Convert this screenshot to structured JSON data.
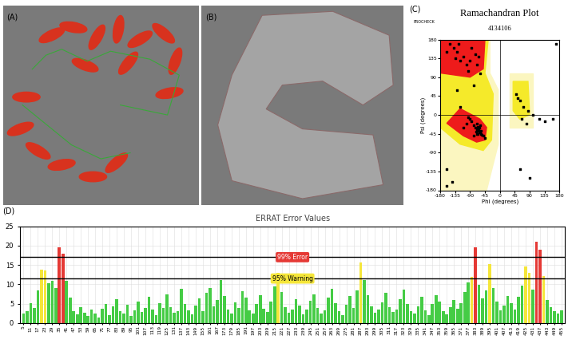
{
  "images": [
    {
      "panel": "(A)"
    },
    {
      "panel": "(B)"
    }
  ],
  "chart_data": [
    {
      "type": "scatter",
      "panel": "(C)",
      "title": "Ramachandran Plot",
      "subtitle": "4134106",
      "source": "PROCHECK",
      "x_label": "Phi (degrees)",
      "y_label": "Psi (degrees)",
      "color": "#000000",
      "marker": "square",
      "x": [
        -63,
        -60,
        -65,
        -58,
        -70,
        -67,
        -62,
        -55,
        -72,
        -75,
        -80,
        -85,
        -90,
        -95,
        -68,
        -60,
        -50,
        -45,
        -100,
        -110,
        -78,
        -64,
        -70,
        -57,
        -66,
        -120,
        -130,
        -140,
        -100,
        -90,
        -150,
        -75,
        -65,
        -110,
        -160,
        -135,
        -85,
        -70,
        -125,
        -95,
        -60,
        -80,
        -160,
        -145,
        -120,
        -130,
        55,
        60,
        70,
        50,
        85,
        65,
        80,
        100,
        120,
        135,
        160,
        60,
        90,
        -160,
        170
      ],
      "y": [
        -42,
        -40,
        -38,
        -45,
        -35,
        -45,
        -30,
        -48,
        -40,
        -30,
        -25,
        -15,
        -10,
        -5,
        -20,
        -25,
        -50,
        -55,
        -20,
        -30,
        -50,
        -36,
        -45,
        -38,
        -28,
        130,
        150,
        160,
        120,
        130,
        170,
        145,
        140,
        140,
        150,
        135,
        160,
        120,
        170,
        105,
        100,
        70,
        -170,
        -160,
        20,
        60,
        40,
        35,
        20,
        50,
        10,
        -10,
        -20,
        0,
        -10,
        -15,
        -10,
        -130,
        -150,
        -130,
        170
      ],
      "xlim": [
        -180,
        180
      ],
      "ylim": [
        -180,
        180
      ],
      "xticks": [
        -180,
        -135,
        -90,
        -45,
        0,
        45,
        90,
        135,
        180
      ],
      "yticks": [
        -180,
        -135,
        -90,
        -45,
        0,
        45,
        90,
        135,
        180
      ]
    },
    {
      "type": "bar",
      "panel": "(D)",
      "title": "ERRAT Error Values",
      "color": "#45cc45",
      "grid": true,
      "x": [
        5,
        8,
        11,
        14,
        17,
        20,
        23,
        26,
        29,
        32,
        35,
        38,
        41,
        44,
        47,
        50,
        53,
        56,
        59,
        62,
        65,
        68,
        71,
        74,
        77,
        80,
        83,
        86,
        89,
        92,
        95,
        98,
        101,
        104,
        107,
        110,
        113,
        116,
        119,
        122,
        125,
        128,
        131,
        134,
        137,
        140,
        143,
        146,
        149,
        152,
        155,
        158,
        161,
        164,
        167,
        170,
        173,
        176,
        179,
        182,
        185,
        188,
        191,
        194,
        197,
        200,
        203,
        206,
        209,
        212,
        215,
        218,
        221,
        224,
        227,
        230,
        233,
        236,
        239,
        242,
        245,
        248,
        251,
        254,
        257,
        260,
        263,
        266,
        269,
        272,
        275,
        278,
        281,
        284,
        287,
        290,
        293,
        296,
        299,
        302,
        305,
        308,
        311,
        314,
        317,
        320,
        323,
        326,
        329,
        332,
        335,
        338,
        341,
        344,
        347,
        350,
        353,
        356,
        359,
        362,
        365,
        368,
        371,
        374,
        377,
        380,
        383,
        386,
        389,
        392,
        395,
        398,
        401,
        404,
        407,
        410,
        413,
        416,
        419,
        422,
        425,
        428,
        431,
        434,
        437,
        440,
        443,
        446,
        449,
        452,
        455
      ],
      "values": [
        2.5,
        3.1,
        5.2,
        4.0,
        8.5,
        13.8,
        13.5,
        10.2,
        11.0,
        9.0,
        19.5,
        17.8,
        11.0,
        6.5,
        3.0,
        2.2,
        4.1,
        2.6,
        1.8,
        3.5,
        2.4,
        1.5,
        3.8,
        5.0,
        2.1,
        4.3,
        6.2,
        3.0,
        2.5,
        4.8,
        1.9,
        3.3,
        5.5,
        2.8,
        4.0,
        6.8,
        3.5,
        2.0,
        5.1,
        3.9,
        7.5,
        4.2,
        2.6,
        3.1,
        8.9,
        5.0,
        3.3,
        2.2,
        4.6,
        6.4,
        3.1,
        7.8,
        9.0,
        4.4,
        6.0,
        11.2,
        7.0,
        3.6,
        2.5,
        5.3,
        4.0,
        8.2,
        6.5,
        3.2,
        2.4,
        4.9,
        7.2,
        3.8,
        2.9,
        5.6,
        9.5,
        13.0,
        8.0,
        4.1,
        2.7,
        3.4,
        6.1,
        4.5,
        2.2,
        3.6,
        5.8,
        7.4,
        4.0,
        2.5,
        3.2,
        6.6,
        8.8,
        5.2,
        3.0,
        2.1,
        4.7,
        6.9,
        3.9,
        8.5,
        15.6,
        11.2,
        7.1,
        4.3,
        2.6,
        3.5,
        5.4,
        7.9,
        4.2,
        2.8,
        3.6,
        6.2,
        8.6,
        5.0,
        3.1,
        2.4,
        4.4,
        6.7,
        3.3,
        2.0,
        4.9,
        7.3,
        5.6,
        3.0,
        2.3,
        4.1,
        6.0,
        3.7,
        5.2,
        8.0,
        10.5,
        12.0,
        19.6,
        9.8,
        6.3,
        8.4,
        15.2,
        9.1,
        5.5,
        3.2,
        4.6,
        7.0,
        5.1,
        3.4,
        6.8,
        9.6,
        14.6,
        13.0,
        8.7,
        21.0,
        19.0,
        12.2,
        6.0,
        4.2,
        3.1,
        2.5,
        3.3
      ],
      "xlim": [
        2,
        458
      ],
      "ylim": [
        0,
        25
      ],
      "xticks": [
        5,
        11,
        17,
        23,
        29,
        35,
        41,
        47,
        53,
        59,
        65,
        71,
        77,
        83,
        89,
        95,
        101,
        107,
        113,
        119,
        125,
        131,
        137,
        143,
        149,
        155,
        161,
        167,
        173,
        179,
        185,
        191,
        197,
        203,
        209,
        215,
        221,
        227,
        233,
        239,
        245,
        251,
        257,
        263,
        269,
        275,
        281,
        287,
        293,
        299,
        305,
        311,
        317,
        323,
        329,
        335,
        341,
        347,
        353,
        359,
        365,
        371,
        377,
        383,
        389,
        395,
        401,
        407,
        413,
        419,
        425,
        431,
        437,
        443,
        449,
        455
      ],
      "yticks": [
        0,
        5,
        10,
        15,
        20,
        25
      ],
      "reference_lines": [
        {
          "value": 17,
          "label": "99% Error",
          "color": "#e53935"
        },
        {
          "value": 11.5,
          "label": "95% Warning",
          "color": "#f5e63a"
        }
      ]
    }
  ]
}
